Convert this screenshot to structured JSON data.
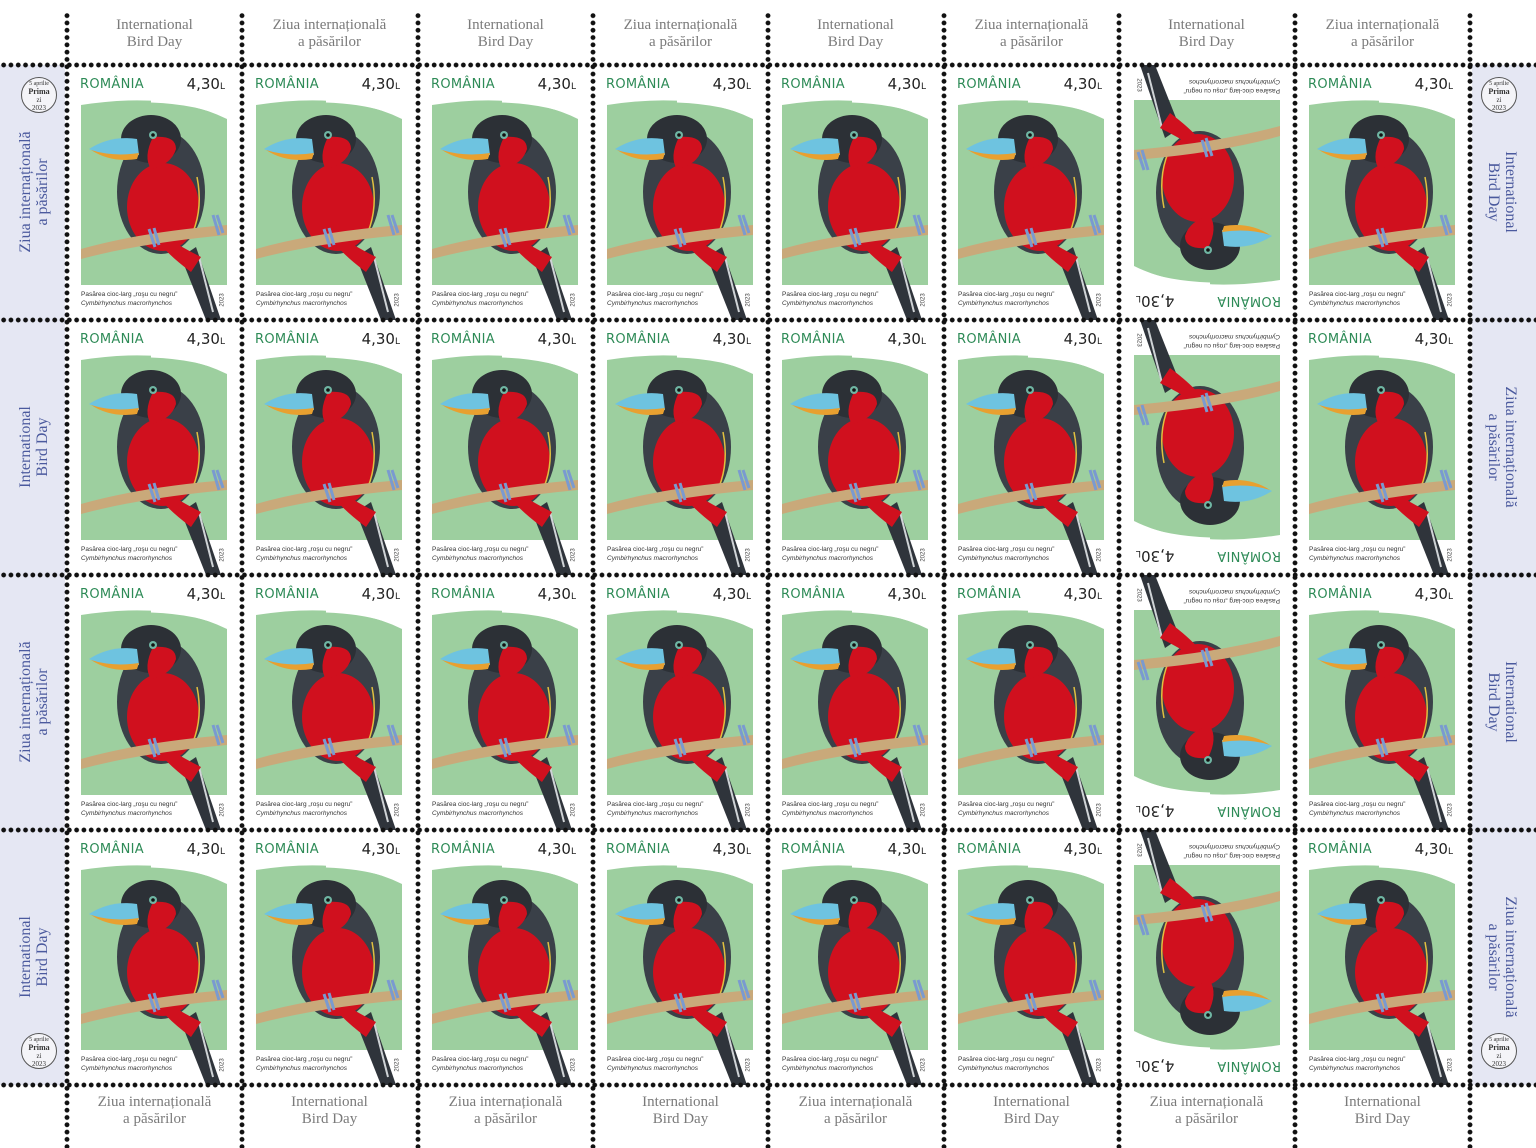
{
  "sheet": {
    "rows": 4,
    "columns": 8,
    "inverted_column": 7,
    "margin_labels": {
      "international": [
        "International",
        "Bird Day"
      ],
      "ziua": [
        "Ziua internațională",
        "a păsărilor"
      ]
    },
    "top_labels": [
      "international",
      "ziua",
      "international",
      "ziua",
      "international",
      "ziua",
      "international",
      "ziua"
    ],
    "bottom_labels": [
      "ziua",
      "international",
      "ziua",
      "international",
      "ziua",
      "international",
      "ziua",
      "international"
    ],
    "left_labels": [
      "ziua",
      "international",
      "ziua",
      "international"
    ],
    "right_labels": [
      "international",
      "ziua",
      "international",
      "ziua"
    ],
    "seal": {
      "date": "5 aprilie",
      "line1": "Prima",
      "line2": "zi",
      "year": "2023"
    }
  },
  "stamp": {
    "country": "ROMÂNIA",
    "value": "4,30",
    "currency": "L",
    "caption": "Pasărea cioc-larg „roşu cu negru”",
    "scientific_name": "Cymbirhynchus macrorhynchos",
    "year": "2023"
  },
  "colors": {
    "country": "#2e8b57",
    "background": "#9dcf9f",
    "bird_red": "#d0101e",
    "bird_dark": "#3a4048",
    "beak": "#6ec3e0",
    "margin": "#e5e7f3"
  }
}
